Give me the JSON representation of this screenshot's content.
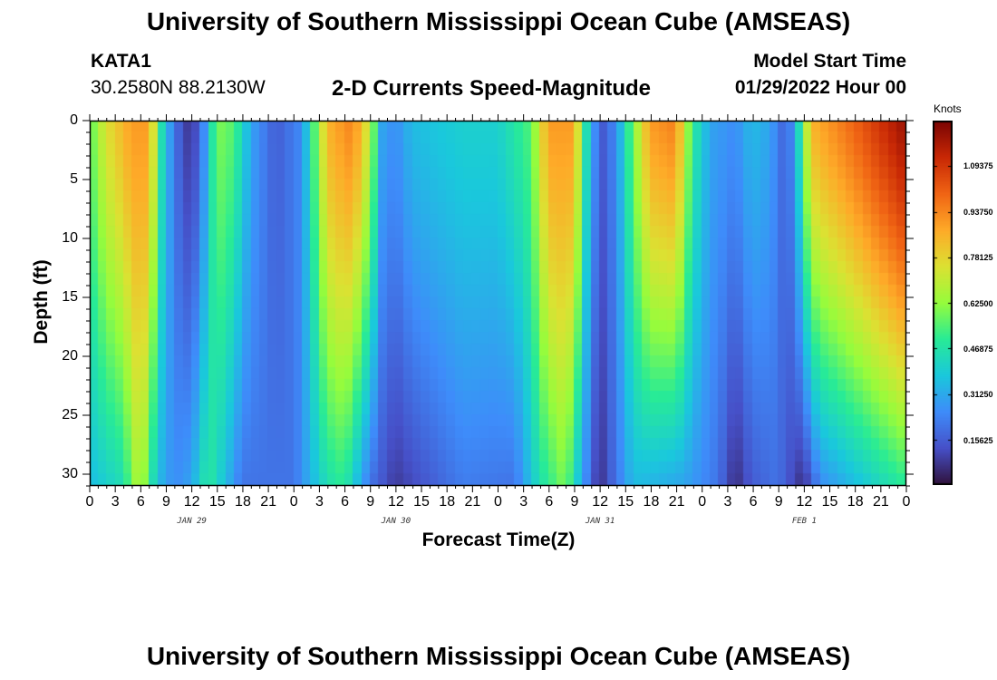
{
  "header": {
    "title": "University of Southern Mississippi Ocean Cube (AMSEAS)",
    "station": "KATA1",
    "coordinates": "30.2580N  88.2130W",
    "subtitle": "2-D Currents Speed-Magnitude",
    "model_start_label": "Model Start Time",
    "model_start_value": "01/29/2022 Hour 00"
  },
  "footer": {
    "title": "University of Southern Mississippi Ocean Cube (AMSEAS)"
  },
  "chart_data": {
    "type": "heatmap",
    "title": "2-D Currents Speed-Magnitude",
    "xlabel": "Forecast Time(Z)",
    "ylabel": "Depth (ft)",
    "x_tick_labels": [
      "0",
      "3",
      "6",
      "9",
      "12",
      "15",
      "18",
      "21",
      "0",
      "3",
      "6",
      "9",
      "12",
      "15",
      "18",
      "21",
      "0",
      "3",
      "6",
      "9",
      "12",
      "15",
      "18",
      "21",
      "0",
      "3",
      "6",
      "9",
      "12",
      "15",
      "18",
      "21",
      "0"
    ],
    "day_labels": [
      {
        "label": "JAN 29",
        "hour": 12
      },
      {
        "label": "JAN 30",
        "hour": 36
      },
      {
        "label": "JAN 31",
        "hour": 60
      },
      {
        "label": "FEB 1",
        "hour": 84
      }
    ],
    "xlim_hours": [
      0,
      96
    ],
    "y_tick_labels": [
      "0",
      "5",
      "10",
      "15",
      "20",
      "25",
      "30"
    ],
    "ylim_ft": [
      0,
      31
    ],
    "y_inverted": true,
    "colorbar": {
      "unit": "Knots",
      "tick_labels": [
        "1.09375",
        "0.93750",
        "0.78125",
        "0.62500",
        "0.46875",
        "0.31250",
        "0.15625"
      ],
      "tick_values": [
        1.09375,
        0.9375,
        0.78125,
        0.625,
        0.46875,
        0.3125,
        0.15625
      ],
      "range": [
        0,
        1.25
      ]
    },
    "surface_speed_knots": [
      {
        "hour": 0,
        "v": 0.55
      },
      {
        "hour": 2,
        "v": 0.75
      },
      {
        "hour": 5,
        "v": 0.9
      },
      {
        "hour": 7,
        "v": 0.9
      },
      {
        "hour": 8.5,
        "v": 0.45
      },
      {
        "hour": 10,
        "v": 0.2
      },
      {
        "hour": 12,
        "v": 0.05
      },
      {
        "hour": 13.5,
        "v": 0.25
      },
      {
        "hour": 15,
        "v": 0.6
      },
      {
        "hour": 17,
        "v": 0.55
      },
      {
        "hour": 19,
        "v": 0.3
      },
      {
        "hour": 22,
        "v": 0.15
      },
      {
        "hour": 25,
        "v": 0.25
      },
      {
        "hour": 26.5,
        "v": 0.55
      },
      {
        "hour": 28,
        "v": 0.85
      },
      {
        "hour": 31,
        "v": 0.95
      },
      {
        "hour": 33,
        "v": 0.7
      },
      {
        "hour": 34.5,
        "v": 0.3
      },
      {
        "hour": 36,
        "v": 0.25
      },
      {
        "hour": 38,
        "v": 0.35
      },
      {
        "hour": 44,
        "v": 0.4
      },
      {
        "hour": 48,
        "v": 0.4
      },
      {
        "hour": 52,
        "v": 0.55
      },
      {
        "hour": 54,
        "v": 0.9
      },
      {
        "hour": 57,
        "v": 0.9
      },
      {
        "hour": 59,
        "v": 0.3
      },
      {
        "hour": 60.5,
        "v": 0.15
      },
      {
        "hour": 62,
        "v": 0.25
      },
      {
        "hour": 64,
        "v": 0.6
      },
      {
        "hour": 66,
        "v": 0.9
      },
      {
        "hour": 69,
        "v": 0.95
      },
      {
        "hour": 71,
        "v": 0.5
      },
      {
        "hour": 73,
        "v": 0.3
      },
      {
        "hour": 76,
        "v": 0.25
      },
      {
        "hour": 78,
        "v": 0.35
      },
      {
        "hour": 80,
        "v": 0.3
      },
      {
        "hour": 82,
        "v": 0.15
      },
      {
        "hour": 83,
        "v": 0.3
      },
      {
        "hour": 85,
        "v": 0.85
      },
      {
        "hour": 90,
        "v": 1.0
      },
      {
        "hour": 96,
        "v": 1.2
      }
    ],
    "bottom_speed_knots": [
      {
        "hour": 0,
        "v": 0.35
      },
      {
        "hour": 4,
        "v": 0.45
      },
      {
        "hour": 6,
        "v": 0.7
      },
      {
        "hour": 8,
        "v": 0.35
      },
      {
        "hour": 10,
        "v": 0.25
      },
      {
        "hour": 12,
        "v": 0.3
      },
      {
        "hour": 14,
        "v": 0.5
      },
      {
        "hour": 16,
        "v": 0.35
      },
      {
        "hour": 18,
        "v": 0.2
      },
      {
        "hour": 24,
        "v": 0.2
      },
      {
        "hour": 28,
        "v": 0.45
      },
      {
        "hour": 30,
        "v": 0.5
      },
      {
        "hour": 33,
        "v": 0.2
      },
      {
        "hour": 36,
        "v": 0.08
      },
      {
        "hour": 40,
        "v": 0.15
      },
      {
        "hour": 44,
        "v": 0.22
      },
      {
        "hour": 50,
        "v": 0.2
      },
      {
        "hour": 53,
        "v": 0.45
      },
      {
        "hour": 56,
        "v": 0.6
      },
      {
        "hour": 58,
        "v": 0.3
      },
      {
        "hour": 60,
        "v": 0.05
      },
      {
        "hour": 62,
        "v": 0.2
      },
      {
        "hour": 64,
        "v": 0.35
      },
      {
        "hour": 70,
        "v": 0.3
      },
      {
        "hour": 74,
        "v": 0.2
      },
      {
        "hour": 76,
        "v": 0.05
      },
      {
        "hour": 78,
        "v": 0.15
      },
      {
        "hour": 81,
        "v": 0.2
      },
      {
        "hour": 84,
        "v": 0.05
      },
      {
        "hour": 86,
        "v": 0.25
      },
      {
        "hour": 90,
        "v": 0.35
      },
      {
        "hour": 94,
        "v": 0.45
      },
      {
        "hour": 96,
        "v": 0.5
      }
    ]
  }
}
